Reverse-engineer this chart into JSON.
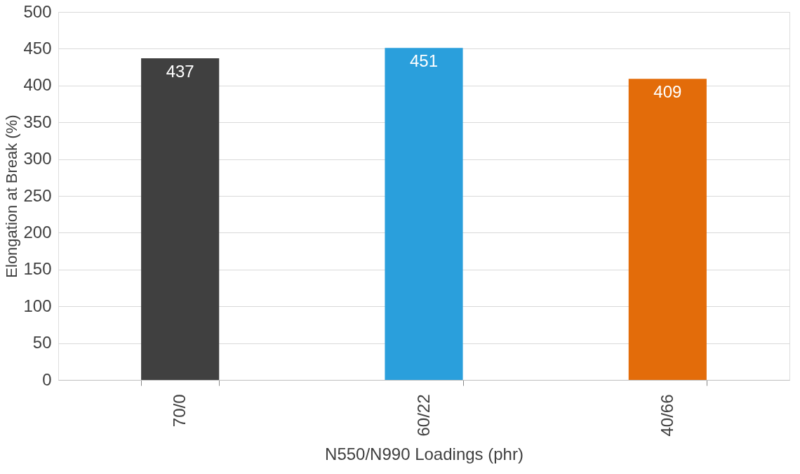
{
  "chart_data": {
    "type": "bar",
    "xlabel": "N550/N990 Loadings (phr)",
    "ylabel": "Elongation at Break (%)",
    "categories": [
      "70/0",
      "60/22",
      "40/66"
    ],
    "values": [
      437,
      451,
      409
    ],
    "colors": [
      "#404040",
      "#2a9fdc",
      "#e36c0a"
    ],
    "ylim": [
      0,
      500
    ],
    "yticks": [
      0,
      50,
      100,
      150,
      200,
      250,
      300,
      350,
      400,
      450,
      500
    ],
    "grid": "y",
    "data_labels": true
  }
}
